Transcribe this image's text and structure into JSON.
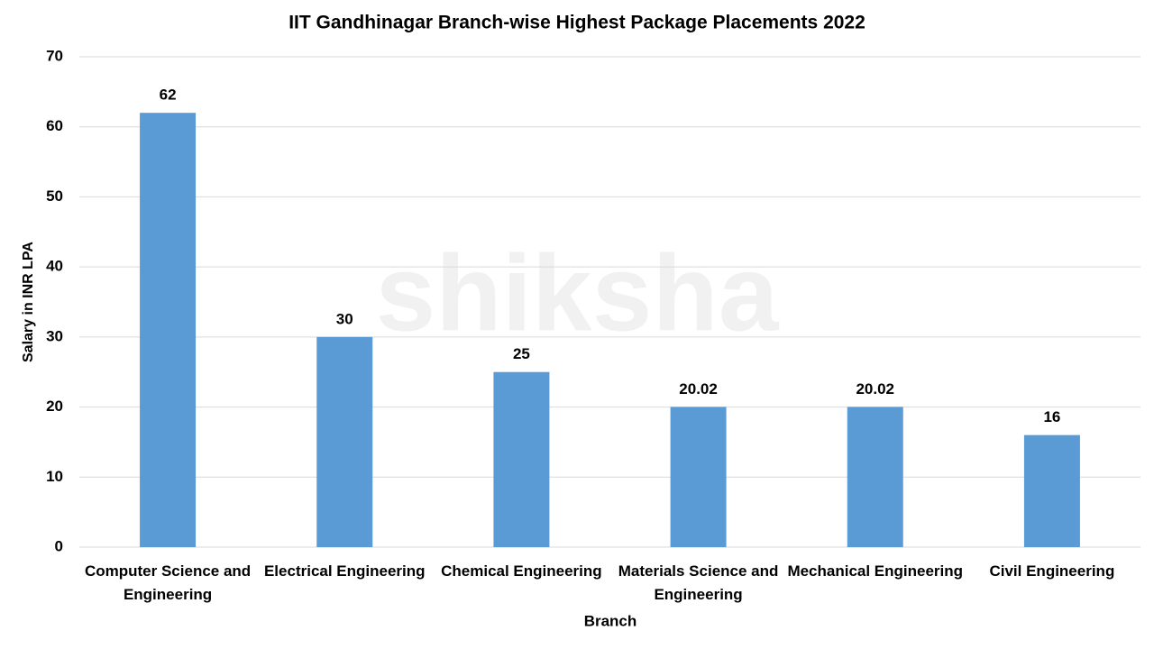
{
  "chart_data": {
    "type": "bar",
    "title": "IIT Gandhinagar Branch-wise Highest Package Placements 2022",
    "watermark": "shiksha",
    "x_label": "Branch",
    "y_label": "Salary in INR LPA",
    "categories": [
      "Computer Science and Engineering",
      "Electrical Engineering",
      "Chemical Engineering",
      "Materials Science and Engineering",
      "Mechanical Engineering",
      "Civil Engineering"
    ],
    "values": [
      62,
      30,
      25,
      20.02,
      20.02,
      16
    ],
    "color": "#5b9bd5",
    "ylim": [
      0,
      70
    ],
    "yticks": [
      0,
      10,
      20,
      30,
      40,
      50,
      60,
      70
    ],
    "grid": true
  }
}
